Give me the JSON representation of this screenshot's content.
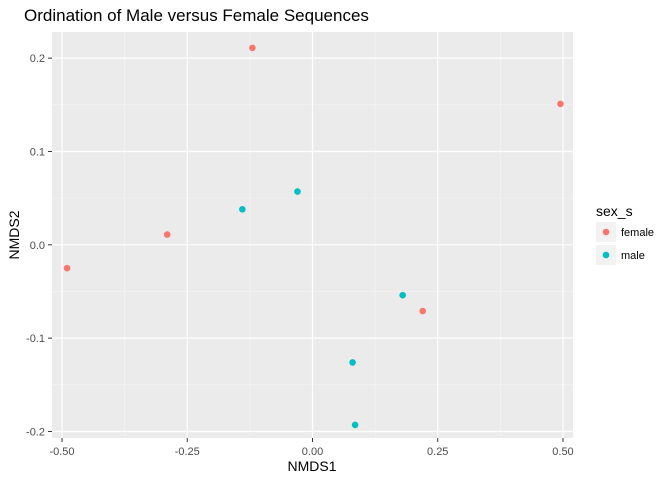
{
  "chart_data": {
    "type": "scatter",
    "title": "Ordination of Male versus Female Sequences",
    "xlabel": "NMDS1",
    "ylabel": "NMDS2",
    "xlim": [
      -0.52,
      0.52
    ],
    "ylim": [
      -0.207,
      0.228
    ],
    "x_ticks": [
      -0.5,
      -0.25,
      0.0,
      0.25,
      0.5
    ],
    "x_tick_labels": [
      "-0.50",
      "-0.25",
      "0.00",
      "0.25",
      "0.50"
    ],
    "y_ticks": [
      -0.2,
      -0.1,
      0.0,
      0.1,
      0.2
    ],
    "y_tick_labels": [
      "-0.2",
      "-0.1",
      "0.0",
      "0.1",
      "0.2"
    ],
    "grid": true,
    "legend": {
      "title": "sex_s",
      "position": "right"
    },
    "series": [
      {
        "name": "female",
        "color": "#F8766D",
        "points": [
          {
            "x": -0.49,
            "y": -0.025
          },
          {
            "x": -0.29,
            "y": 0.011
          },
          {
            "x": -0.12,
            "y": 0.211
          },
          {
            "x": 0.22,
            "y": -0.071
          },
          {
            "x": 0.495,
            "y": 0.151
          }
        ]
      },
      {
        "name": "male",
        "color": "#00BFC4",
        "points": [
          {
            "x": -0.14,
            "y": 0.038
          },
          {
            "x": -0.03,
            "y": 0.057
          },
          {
            "x": 0.18,
            "y": -0.054
          },
          {
            "x": 0.08,
            "y": -0.126
          },
          {
            "x": 0.085,
            "y": -0.193
          }
        ]
      }
    ]
  }
}
